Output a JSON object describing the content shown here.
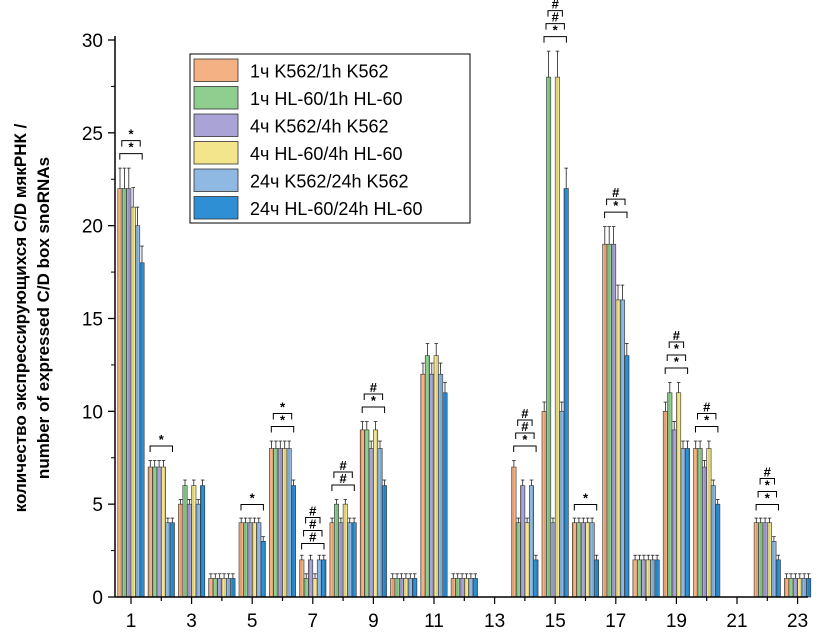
{
  "chart_data": {
    "type": "bar",
    "title": "",
    "xlabel": "",
    "ylabel_lines": [
      "количество экспрессирующихся C/D мякРНК /",
      "number of expressed C/D box snoRNAs"
    ],
    "ylim": [
      0,
      30
    ],
    "yticks": [
      0,
      5,
      10,
      15,
      20,
      25,
      30
    ],
    "categories": [
      1,
      2,
      3,
      4,
      5,
      6,
      7,
      8,
      9,
      10,
      11,
      12,
      13,
      14,
      15,
      16,
      17,
      18,
      19,
      20,
      21,
      22,
      23
    ],
    "xtick_labels": [
      "1",
      "3",
      "5",
      "7",
      "9",
      "11",
      "13",
      "15",
      "17",
      "19",
      "21",
      "23"
    ],
    "xtick_values": [
      1,
      3,
      5,
      7,
      9,
      11,
      13,
      15,
      17,
      19,
      21,
      23
    ],
    "legend_placement": "top-left",
    "series": [
      {
        "name": "1ч K562/1h K562",
        "color": "#f4b183",
        "values": [
          22,
          7,
          5,
          1,
          4,
          8,
          2,
          4,
          9,
          1,
          12,
          1,
          0,
          7,
          10,
          4,
          19,
          2,
          10,
          8,
          0,
          4,
          1
        ]
      },
      {
        "name": "1ч HL-60/1h HL-60",
        "color": "#8fce8f",
        "values": [
          22,
          7,
          6,
          1,
          4,
          8,
          1,
          5,
          9,
          1,
          13,
          1,
          0,
          4,
          28,
          4,
          19,
          2,
          11,
          8,
          0,
          4,
          1
        ]
      },
      {
        "name": "4ч K562/4h K562",
        "color": "#a9a3d6",
        "values": [
          22,
          7,
          5,
          1,
          4,
          8,
          2,
          4,
          8,
          1,
          12,
          1,
          0,
          6,
          4,
          4,
          19,
          2,
          9,
          7,
          0,
          4,
          1
        ]
      },
      {
        "name": "4ч HL-60/4h HL-60",
        "color": "#f3e58c",
        "values": [
          21,
          7,
          6,
          1,
          4,
          8,
          1,
          5,
          9,
          1,
          13,
          1,
          0,
          4,
          28,
          4,
          16,
          2,
          11,
          8,
          0,
          4,
          1
        ]
      },
      {
        "name": "24ч K562/24h K562",
        "color": "#8fb8e3",
        "values": [
          20,
          4,
          5,
          1,
          4,
          8,
          2,
          4,
          8,
          1,
          12,
          1,
          0,
          6,
          10,
          4,
          16,
          2,
          8,
          6,
          0,
          3,
          1
        ]
      },
      {
        "name": "24ч HL-60/24h HL-60",
        "color": "#2e8fd4",
        "values": [
          18,
          4,
          6,
          1,
          3,
          6,
          2,
          4,
          6,
          1,
          11,
          1,
          0,
          2,
          22,
          2,
          13,
          2,
          8,
          5,
          0,
          2,
          1
        ]
      }
    ],
    "significance_marks": [
      {
        "category": 1,
        "symbol": "*"
      },
      {
        "category": 1,
        "symbol": "*"
      },
      {
        "category": 2,
        "symbol": "*"
      },
      {
        "category": 5,
        "symbol": "*"
      },
      {
        "category": 6,
        "symbol": "*"
      },
      {
        "category": 6,
        "symbol": "*"
      },
      {
        "category": 7,
        "symbol": "#"
      },
      {
        "category": 7,
        "symbol": "#"
      },
      {
        "category": 7,
        "symbol": "#"
      },
      {
        "category": 8,
        "symbol": "#"
      },
      {
        "category": 8,
        "symbol": "#"
      },
      {
        "category": 9,
        "symbol": "*"
      },
      {
        "category": 9,
        "symbol": "#"
      },
      {
        "category": 14,
        "symbol": "*"
      },
      {
        "category": 14,
        "symbol": "#"
      },
      {
        "category": 14,
        "symbol": "#"
      },
      {
        "category": 15,
        "symbol": "*"
      },
      {
        "category": 15,
        "symbol": "#"
      },
      {
        "category": 15,
        "symbol": "#"
      },
      {
        "category": 16,
        "symbol": "*"
      },
      {
        "category": 17,
        "symbol": "*"
      },
      {
        "category": 17,
        "symbol": "#"
      },
      {
        "category": 19,
        "symbol": "*"
      },
      {
        "category": 19,
        "symbol": "*"
      },
      {
        "category": 19,
        "symbol": "#"
      },
      {
        "category": 20,
        "symbol": "*"
      },
      {
        "category": 20,
        "symbol": "#"
      },
      {
        "category": 22,
        "symbol": "*"
      },
      {
        "category": 22,
        "symbol": "*"
      },
      {
        "category": 22,
        "symbol": "#"
      }
    ]
  }
}
